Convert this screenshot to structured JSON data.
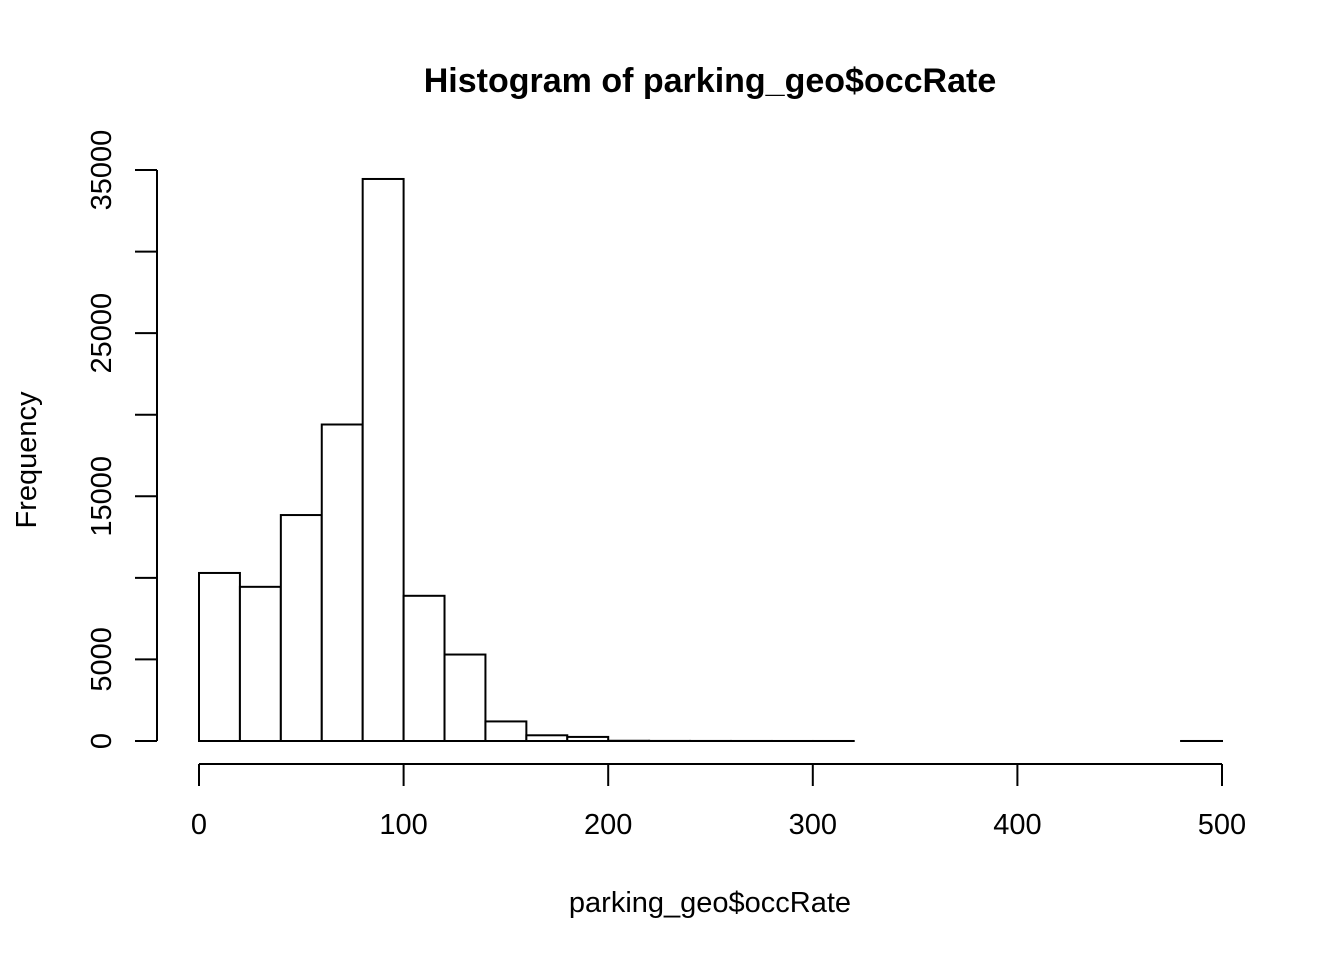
{
  "chart_data": {
    "type": "bar",
    "title": "Histogram of parking_geo$occRate",
    "xlabel": "parking_geo$occRate",
    "ylabel": "Frequency",
    "bin_width": 20,
    "bins": [
      {
        "x0": 0,
        "x1": 20,
        "count": 10300
      },
      {
        "x0": 20,
        "x1": 40,
        "count": 9450
      },
      {
        "x0": 40,
        "x1": 60,
        "count": 13850
      },
      {
        "x0": 60,
        "x1": 80,
        "count": 19400
      },
      {
        "x0": 80,
        "x1": 100,
        "count": 34450
      },
      {
        "x0": 100,
        "x1": 120,
        "count": 8900
      },
      {
        "x0": 120,
        "x1": 140,
        "count": 5300
      },
      {
        "x0": 140,
        "x1": 160,
        "count": 1200
      },
      {
        "x0": 160,
        "x1": 180,
        "count": 350
      },
      {
        "x0": 180,
        "x1": 200,
        "count": 250
      },
      {
        "x0": 200,
        "x1": 220,
        "count": 15
      },
      {
        "x0": 220,
        "x1": 240,
        "count": 5
      },
      {
        "x0": 240,
        "x1": 260,
        "count": 3
      },
      {
        "x0": 260,
        "x1": 280,
        "count": 2
      },
      {
        "x0": 280,
        "x1": 300,
        "count": 1
      },
      {
        "x0": 300,
        "x1": 320,
        "count": 1
      },
      {
        "x0": 320,
        "x1": 340,
        "count": 0
      },
      {
        "x0": 340,
        "x1": 360,
        "count": 0
      },
      {
        "x0": 360,
        "x1": 380,
        "count": 0
      },
      {
        "x0": 380,
        "x1": 400,
        "count": 0
      },
      {
        "x0": 400,
        "x1": 420,
        "count": 0
      },
      {
        "x0": 420,
        "x1": 440,
        "count": 0
      },
      {
        "x0": 440,
        "x1": 460,
        "count": 0
      },
      {
        "x0": 460,
        "x1": 480,
        "count": 0
      },
      {
        "x0": 480,
        "x1": 500,
        "count": 1
      }
    ],
    "xlim": [
      0,
      500
    ],
    "ylim": [
      0,
      35000
    ],
    "x_ticks": [
      0,
      100,
      200,
      300,
      400,
      500
    ],
    "y_ticks": [
      0,
      5000,
      15000,
      25000,
      35000
    ],
    "y_minor_ticks": [
      10000,
      20000,
      30000
    ],
    "grid": false,
    "legend": "none"
  }
}
